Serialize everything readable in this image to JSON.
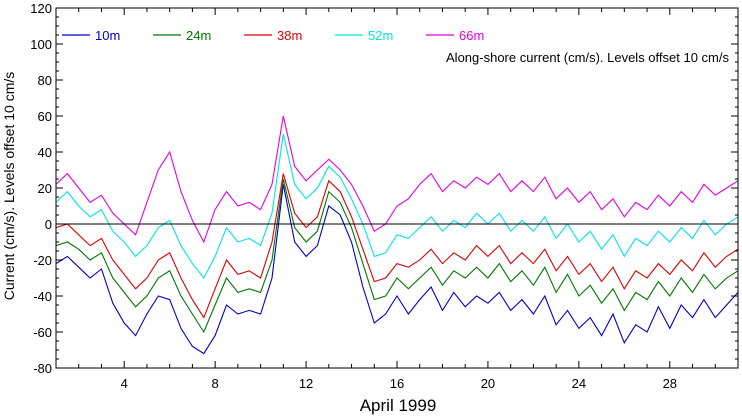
{
  "chart_data": {
    "type": "line",
    "title": "",
    "xlabel": "April 1999",
    "ylabel": "Current (cm/s). Levels offset 10 cm/s",
    "annotation": "Along-shore current (cm/s). Levels offset 10 cm/s",
    "xlim": [
      1,
      31
    ],
    "ylim": [
      -80,
      120
    ],
    "x_ticks": [
      4,
      8,
      12,
      16,
      20,
      24,
      28
    ],
    "x_tick_labels": [
      "4",
      "8",
      "12",
      "16",
      "20",
      "24",
      "28"
    ],
    "y_ticks": [
      -80,
      -60,
      -40,
      -20,
      0,
      20,
      40,
      60,
      80,
      100,
      120
    ],
    "y_tick_labels": [
      "-80",
      "-60",
      "-40",
      "-20",
      "0",
      "20",
      "40",
      "60",
      "80",
      "100",
      "120"
    ],
    "zero_line": 0,
    "grid": false,
    "legend_position": "top-left",
    "x": [
      1.0,
      1.5,
      2.0,
      2.5,
      3.0,
      3.5,
      4.0,
      4.5,
      5.0,
      5.5,
      6.0,
      6.5,
      7.0,
      7.5,
      8.0,
      8.5,
      9.0,
      9.5,
      10.0,
      10.5,
      11.0,
      11.5,
      12.0,
      12.5,
      13.0,
      13.5,
      14.0,
      14.5,
      15.0,
      15.5,
      16.0,
      16.5,
      17.0,
      17.5,
      18.0,
      18.5,
      19.0,
      19.5,
      20.0,
      20.5,
      21.0,
      21.5,
      22.0,
      22.5,
      23.0,
      23.5,
      24.0,
      24.5,
      25.0,
      25.5,
      26.0,
      26.5,
      27.0,
      27.5,
      28.0,
      28.5,
      29.0,
      29.5,
      30.0,
      30.5,
      31.0
    ],
    "series": [
      {
        "name": "10m",
        "color": "#0000cc",
        "values": [
          -22,
          -18,
          -24,
          -30,
          -25,
          -44,
          -55,
          -62,
          -50,
          -40,
          -42,
          -58,
          -68,
          -72,
          -62,
          -45,
          -50,
          -48,
          -50,
          -30,
          22,
          -10,
          -18,
          -12,
          10,
          5,
          -10,
          -35,
          -55,
          -50,
          -40,
          -50,
          -42,
          -35,
          -48,
          -38,
          -46,
          -40,
          -44,
          -38,
          -48,
          -42,
          -50,
          -40,
          -56,
          -48,
          -58,
          -52,
          -62,
          -50,
          -66,
          -56,
          -60,
          -46,
          -58,
          -45,
          -52,
          -42,
          -52,
          -45,
          -38
        ]
      },
      {
        "name": "24m",
        "color": "#007700",
        "values": [
          -12,
          -10,
          -14,
          -20,
          -16,
          -30,
          -38,
          -46,
          -40,
          -30,
          -26,
          -40,
          -50,
          -60,
          -45,
          -30,
          -38,
          -36,
          -38,
          -20,
          25,
          -2,
          -10,
          -4,
          18,
          12,
          -2,
          -22,
          -42,
          -40,
          -30,
          -36,
          -30,
          -24,
          -34,
          -26,
          -30,
          -24,
          -30,
          -22,
          -32,
          -26,
          -34,
          -24,
          -38,
          -28,
          -40,
          -34,
          -44,
          -36,
          -48,
          -38,
          -42,
          -32,
          -40,
          -30,
          -38,
          -28,
          -36,
          -30,
          -26
        ]
      },
      {
        "name": "38m",
        "color": "#dd0000",
        "values": [
          -2,
          0,
          -6,
          -12,
          -8,
          -20,
          -28,
          -36,
          -30,
          -20,
          -16,
          -30,
          -42,
          -52,
          -36,
          -20,
          -28,
          -26,
          -30,
          -10,
          28,
          6,
          -2,
          4,
          24,
          18,
          4,
          -14,
          -32,
          -30,
          -22,
          -24,
          -20,
          -14,
          -22,
          -16,
          -20,
          -12,
          -18,
          -12,
          -22,
          -16,
          -22,
          -14,
          -26,
          -18,
          -28,
          -22,
          -32,
          -24,
          -36,
          -26,
          -30,
          -22,
          -28,
          -20,
          -26,
          -16,
          -24,
          -18,
          -14
        ]
      },
      {
        "name": "52m",
        "color": "#00e5e5",
        "values": [
          12,
          18,
          10,
          4,
          8,
          -4,
          -10,
          -18,
          -12,
          -2,
          2,
          -12,
          -22,
          -30,
          -18,
          -2,
          -10,
          -8,
          -12,
          6,
          50,
          22,
          14,
          20,
          32,
          26,
          14,
          0,
          -18,
          -16,
          -6,
          -8,
          -2,
          4,
          -4,
          2,
          -2,
          6,
          0,
          6,
          -4,
          2,
          -4,
          4,
          -8,
          0,
          -10,
          -4,
          -14,
          -6,
          -18,
          -8,
          -12,
          -4,
          -10,
          -2,
          -8,
          2,
          -6,
          0,
          4
        ]
      },
      {
        "name": "66m",
        "color": "#e600e6",
        "values": [
          22,
          28,
          20,
          12,
          16,
          6,
          0,
          -6,
          12,
          30,
          40,
          18,
          2,
          -10,
          8,
          18,
          10,
          12,
          8,
          22,
          60,
          32,
          24,
          30,
          36,
          30,
          22,
          10,
          -4,
          0,
          10,
          14,
          22,
          28,
          18,
          24,
          20,
          26,
          22,
          28,
          18,
          24,
          18,
          26,
          14,
          20,
          12,
          18,
          8,
          14,
          4,
          12,
          8,
          16,
          10,
          18,
          12,
          22,
          16,
          20,
          24
        ]
      }
    ]
  }
}
